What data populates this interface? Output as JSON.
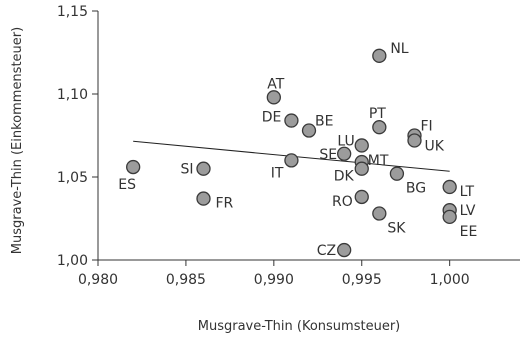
{
  "chart_data": {
    "type": "scatter",
    "title": "",
    "xlabel": "Musgrave-Thin (Konsumsteuer)",
    "ylabel": "Musgrave-Thin (Einkommensteuer)",
    "xlim": [
      0.98,
      1.004
    ],
    "ylim": [
      1.0,
      1.15
    ],
    "x_ticks": [
      0.98,
      0.985,
      0.99,
      0.995,
      1.0
    ],
    "x_tick_labels": [
      "0,980",
      "0,985",
      "0,990",
      "0,995",
      "1,000"
    ],
    "y_ticks": [
      1.0,
      1.05,
      1.1,
      1.15
    ],
    "y_tick_labels": [
      "1,00",
      "1,05",
      "1,10",
      "1,15"
    ],
    "grid": false,
    "marker_color": "#9c9c9c",
    "marker_edge": "#3a3a3a",
    "trendline": {
      "x": [
        0.982,
        1.0
      ],
      "y": [
        1.0715,
        1.0535
      ]
    },
    "points": [
      {
        "label": "NL",
        "x": 0.996,
        "y": 1.123
      },
      {
        "label": "AT",
        "x": 0.99,
        "y": 1.098
      },
      {
        "label": "DE",
        "x": 0.991,
        "y": 1.084
      },
      {
        "label": "BE",
        "x": 0.992,
        "y": 1.078
      },
      {
        "label": "PT",
        "x": 0.996,
        "y": 1.08
      },
      {
        "label": "FI",
        "x": 0.998,
        "y": 1.075
      },
      {
        "label": "UK",
        "x": 0.998,
        "y": 1.072
      },
      {
        "label": "LU",
        "x": 0.995,
        "y": 1.069
      },
      {
        "label": "SE",
        "x": 0.994,
        "y": 1.064
      },
      {
        "label": "MT",
        "x": 0.995,
        "y": 1.059
      },
      {
        "label": "DK",
        "x": 0.995,
        "y": 1.055
      },
      {
        "label": "IT",
        "x": 0.991,
        "y": 1.06
      },
      {
        "label": "ES",
        "x": 0.982,
        "y": 1.056
      },
      {
        "label": "SI",
        "x": 0.986,
        "y": 1.055
      },
      {
        "label": "FR",
        "x": 0.986,
        "y": 1.037
      },
      {
        "label": "BG",
        "x": 0.997,
        "y": 1.052
      },
      {
        "label": "LT",
        "x": 1.0,
        "y": 1.044
      },
      {
        "label": "RO",
        "x": 0.995,
        "y": 1.038
      },
      {
        "label": "SK",
        "x": 0.996,
        "y": 1.028
      },
      {
        "label": "LV",
        "x": 1.0,
        "y": 1.03
      },
      {
        "label": "EE",
        "x": 1.0,
        "y": 1.026
      },
      {
        "label": "CZ",
        "x": 0.994,
        "y": 1.006
      }
    ]
  }
}
